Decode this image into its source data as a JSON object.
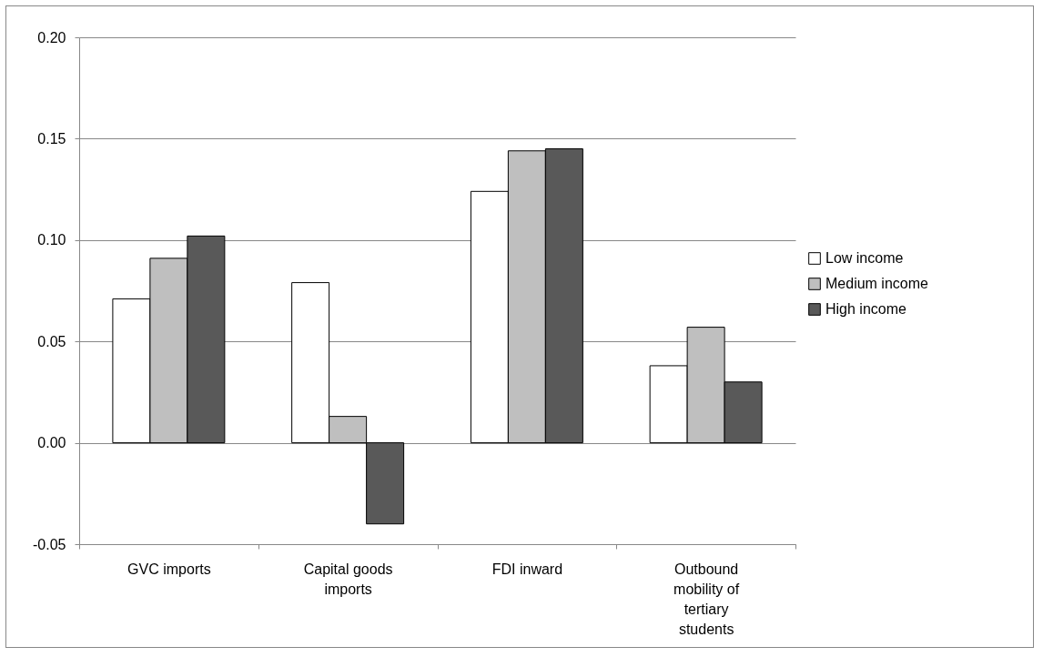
{
  "chart_data": {
    "type": "bar",
    "categories": [
      "GVC imports",
      "Capital goods imports",
      "FDI inward",
      "Outbound mobility of tertiary students"
    ],
    "series": [
      {
        "name": "Low income",
        "color": "#ffffff",
        "values": [
          0.071,
          0.079,
          0.124,
          0.038
        ]
      },
      {
        "name": "Medium income",
        "color": "#bfbfbf",
        "values": [
          0.091,
          0.013,
          0.144,
          0.057
        ]
      },
      {
        "name": "High income",
        "color": "#595959",
        "values": [
          0.102,
          -0.04,
          0.145,
          0.03
        ]
      }
    ],
    "ylim": [
      -0.05,
      0.2
    ],
    "yticks": [
      {
        "value": -0.05,
        "label": "-0.05"
      },
      {
        "value": 0,
        "label": "0.00"
      },
      {
        "value": 0.05,
        "label": "0.05"
      },
      {
        "value": 0.1,
        "label": "0.10"
      },
      {
        "value": 0.15,
        "label": "0.15"
      },
      {
        "value": 0.2,
        "label": "0.20"
      }
    ],
    "grid": "y",
    "legend": "right"
  }
}
